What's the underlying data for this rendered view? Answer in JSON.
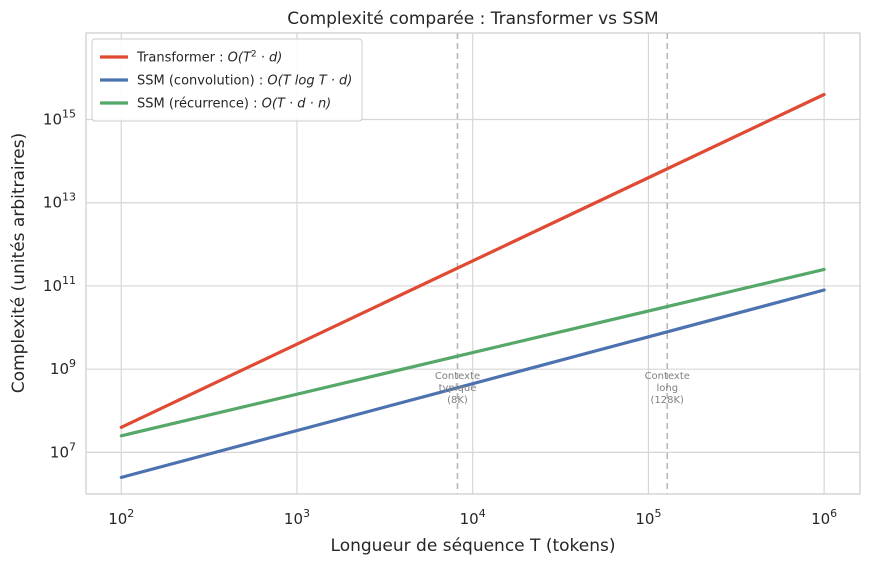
{
  "chart_data": {
    "type": "line",
    "title": "Complexité comparée : Transformer vs SSM",
    "xlabel": "Longueur de séquence T (tokens)",
    "ylabel": "Complexité (unités arbitraires)",
    "xscale": "log",
    "yscale": "log",
    "xlim": [
      63,
      1600000
    ],
    "ylim": [
      1000000,
      120000000000000000
    ],
    "grid": true,
    "legend_position": "top-left",
    "x_ticks": [
      {
        "value": 100,
        "mantissa": "10",
        "exp": "2"
      },
      {
        "value": 1000,
        "mantissa": "10",
        "exp": "3"
      },
      {
        "value": 10000,
        "mantissa": "10",
        "exp": "4"
      },
      {
        "value": 100000,
        "mantissa": "10",
        "exp": "5"
      },
      {
        "value": 1000000,
        "mantissa": "10",
        "exp": "6"
      }
    ],
    "y_ticks": [
      {
        "value": 10000000,
        "mantissa": "10",
        "exp": "7"
      },
      {
        "value": 1000000000,
        "mantissa": "10",
        "exp": "9"
      },
      {
        "value": 100000000000,
        "mantissa": "10",
        "exp": "11"
      },
      {
        "value": 10000000000000,
        "mantissa": "10",
        "exp": "13"
      },
      {
        "value": 1000000000000000,
        "mantissa": "10",
        "exp": "15"
      }
    ],
    "series": [
      {
        "name": "Transformer : O(T²·d)",
        "legend_prefix": "Transformer : ",
        "legend_math": "O(T",
        "legend_sup": "2",
        "legend_tail": " · d)",
        "color": "#e04a33",
        "x": [
          100,
          1000000
        ],
        "y": [
          40000000,
          4000000000000000
        ]
      },
      {
        "name": "SSM (convolution) : O(T log T·d)",
        "legend_prefix": "SSM (convolution) : ",
        "legend_math": "O(T log T · d)",
        "legend_sup": "",
        "legend_tail": "",
        "color": "#4c72b0",
        "x": [
          100,
          1000000
        ],
        "y": [
          2500000,
          80000000000
        ]
      },
      {
        "name": "SSM (récurrence) : O(T·d·n)",
        "legend_prefix": "SSM (récurrence) : ",
        "legend_math": "O(T · d · n)",
        "legend_sup": "",
        "legend_tail": "",
        "color": "#55a868",
        "x": [
          100,
          1000000
        ],
        "y": [
          25000000,
          250000000000
        ]
      }
    ],
    "annotations": [
      {
        "x": 8192,
        "lines": [
          "Contexte",
          "typique",
          "(8K)"
        ]
      },
      {
        "x": 128000,
        "lines": [
          "Contexte",
          "long",
          "(128K)"
        ]
      }
    ]
  }
}
